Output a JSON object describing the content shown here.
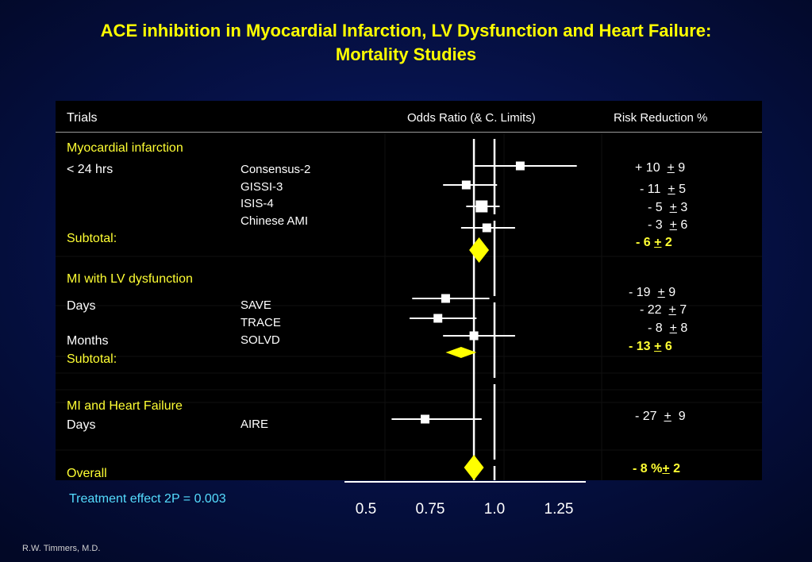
{
  "title_line1": "ACE inhibition in Myocardial Infarction, LV Dysfunction and Heart Failure:",
  "title_line2": "Mortality Studies",
  "header": {
    "trials": "Trials",
    "odds_ratio": "Odds Ratio (& C. Limits)",
    "risk_reduction": "Risk Reduction %"
  },
  "groups": [
    {
      "heading": "Myocardial infarction",
      "timing": [
        "< 24 hrs"
      ],
      "trials": [
        "Consensus-2",
        "GISSI-3",
        "ISIS-4",
        "Chinese AMI"
      ],
      "subtotal_label": "Subtotal:"
    },
    {
      "heading": "MI with LV dysfunction",
      "timing": [
        "Days",
        "Months"
      ],
      "trials": [
        "SAVE",
        "TRACE",
        "SOLVD"
      ],
      "subtotal_label": "Subtotal:"
    },
    {
      "heading": "MI and Heart Failure",
      "timing": [
        "Days"
      ],
      "trials": [
        "AIRE"
      ]
    }
  ],
  "overall_label": "Overall",
  "risk_reduction": [
    {
      "value": "+ 10",
      "pm": "+",
      "error": "9"
    },
    {
      "value": "- 11",
      "pm": "+",
      "error": "5"
    },
    {
      "value": "- 5",
      "pm": "+",
      "error": "3"
    },
    {
      "value": "- 3",
      "pm": "+",
      "error": "6"
    },
    {
      "value": "- 6",
      "pm": "+",
      "error": "2"
    },
    {
      "value": "- 19",
      "pm": "+",
      "error": "9"
    },
    {
      "value": "- 22",
      "pm": "+",
      "error": "7"
    },
    {
      "value": "- 8",
      "pm": "+",
      "error": "8"
    },
    {
      "value": "- 13",
      "pm": "+",
      "error": "6"
    },
    {
      "value": "- 27",
      "pm": "+",
      "error": "9"
    },
    {
      "value": "- 8 %",
      "pm": "+",
      "error": "2"
    }
  ],
  "treatment_effect": "Treatment effect 2P = 0.003",
  "credit": "R.W. Timmers, M.D.",
  "chart_data": {
    "type": "forest",
    "x_ticks": [
      "0.5",
      "0.75",
      "1.0",
      "1.25"
    ],
    "x_tick_values": [
      0.5,
      0.75,
      1.0,
      1.25
    ],
    "xlim": [
      0.45,
      1.35
    ],
    "reference_line": 1.0,
    "overall_line": 0.92,
    "rows": [
      {
        "trial": "Consensus-2",
        "or": 1.1,
        "lo": 0.92,
        "hi": 1.32,
        "kind": "square",
        "size": "small"
      },
      {
        "trial": "GISSI-3",
        "or": 0.89,
        "lo": 0.8,
        "hi": 1.01,
        "kind": "square",
        "size": "small"
      },
      {
        "trial": "ISIS-4",
        "or": 0.95,
        "lo": 0.89,
        "hi": 1.02,
        "kind": "square",
        "size": "large"
      },
      {
        "trial": "Chinese AMI",
        "or": 0.97,
        "lo": 0.87,
        "hi": 1.08,
        "kind": "square",
        "size": "small"
      },
      {
        "trial": "Subtotal",
        "or": 0.94,
        "lo": 0.92,
        "hi": 0.96,
        "kind": "diamond"
      },
      {
        "trial": "SAVE",
        "or": 0.81,
        "lo": 0.68,
        "hi": 0.98,
        "kind": "square",
        "size": "small"
      },
      {
        "trial": "TRACE",
        "or": 0.78,
        "lo": 0.67,
        "hi": 0.93,
        "kind": "square",
        "size": "small"
      },
      {
        "trial": "SOLVD",
        "or": 0.92,
        "lo": 0.8,
        "hi": 1.08,
        "kind": "square",
        "size": "small"
      },
      {
        "trial": "Subtotal",
        "or": 0.87,
        "lo": 0.81,
        "hi": 0.93,
        "kind": "diamond"
      },
      {
        "trial": "AIRE",
        "or": 0.73,
        "lo": 0.6,
        "hi": 0.95,
        "kind": "square",
        "size": "small"
      },
      {
        "trial": "Overall",
        "or": 0.92,
        "lo": 0.9,
        "hi": 0.94,
        "kind": "diamond"
      }
    ]
  }
}
